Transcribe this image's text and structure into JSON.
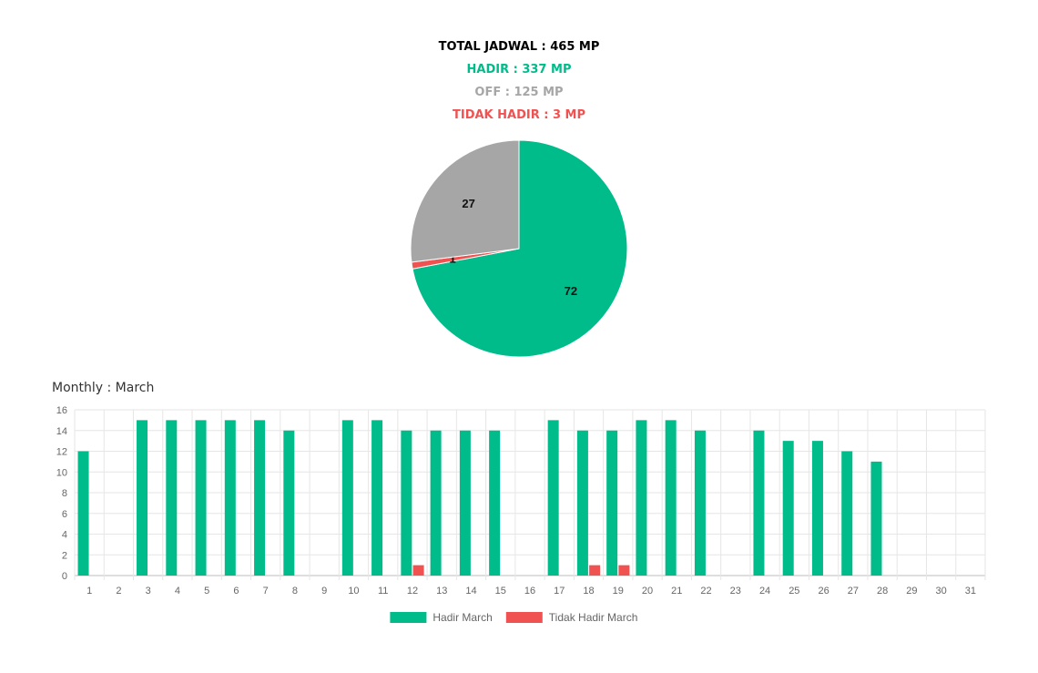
{
  "summary": {
    "total": "TOTAL JADWAL : 465 MP",
    "hadir": "HADIR : 337 MP",
    "off": "OFF : 125 MP",
    "tidak_hadir": "TIDAK HADIR : 3 MP"
  },
  "colors": {
    "hadir": "#00bc8a",
    "off": "#a6a6a6",
    "tidak_hadir": "#f05252",
    "grid": "#e6e6e6"
  },
  "monthly_title": "Monthly : March",
  "chart_data": [
    {
      "type": "pie",
      "slices": [
        {
          "label": "72",
          "value": 72,
          "color": "#00bc8a"
        },
        {
          "label": "1",
          "value": 1,
          "color": "#f05252"
        },
        {
          "label": "27",
          "value": 27,
          "color": "#a6a6a6"
        }
      ]
    },
    {
      "type": "bar",
      "categories": [
        "1",
        "2",
        "3",
        "4",
        "5",
        "6",
        "7",
        "8",
        "9",
        "10",
        "11",
        "12",
        "13",
        "14",
        "15",
        "16",
        "17",
        "18",
        "19",
        "20",
        "21",
        "22",
        "23",
        "24",
        "25",
        "26",
        "27",
        "28",
        "29",
        "30",
        "31"
      ],
      "series": [
        {
          "name": "Hadir March",
          "color": "#00bc8a",
          "values": [
            12,
            0,
            15,
            15,
            15,
            15,
            15,
            14,
            0,
            15,
            15,
            14,
            14,
            14,
            14,
            0,
            15,
            14,
            14,
            15,
            15,
            14,
            0,
            14,
            13,
            13,
            12,
            11,
            0,
            0,
            0
          ]
        },
        {
          "name": "Tidak Hadir March",
          "color": "#f05252",
          "values": [
            0,
            0,
            0,
            0,
            0,
            0,
            0,
            0,
            0,
            0,
            0,
            1,
            0,
            0,
            0,
            0,
            0,
            1,
            1,
            0,
            0,
            0,
            0,
            0,
            0,
            0,
            0,
            0,
            0,
            0,
            0
          ]
        }
      ],
      "yticks": [
        "0",
        "2",
        "4",
        "6",
        "8",
        "10",
        "12",
        "14",
        "16"
      ],
      "ylim": [
        0,
        16
      ],
      "grid": true,
      "legend": "bottom"
    }
  ]
}
